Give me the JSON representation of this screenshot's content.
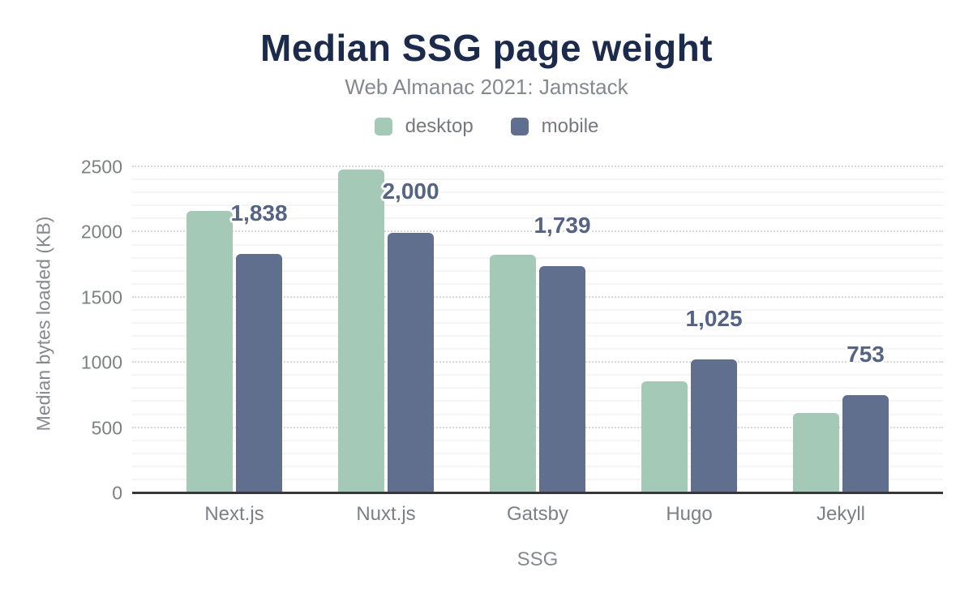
{
  "chart_data": {
    "type": "bar",
    "title": "Median SSG page weight",
    "subtitle": "Web Almanac 2021: Jamstack",
    "xlabel": "SSG",
    "ylabel": "Median bytes loaded (KB)",
    "categories": [
      "Next.js",
      "Nuxt.js",
      "Gatsby",
      "Hugo",
      "Jekyll"
    ],
    "series": [
      {
        "name": "desktop",
        "color": "#a5c9b7",
        "values": [
          2165,
          2485,
          1830,
          858,
          613
        ]
      },
      {
        "name": "mobile",
        "color": "#5f6f8d",
        "values": [
          1838,
          2000,
          1739,
          1025,
          753
        ],
        "labels": [
          "1,838",
          "2,000",
          "1,739",
          "1,025",
          "753"
        ]
      }
    ],
    "ylim": [
      0,
      2600
    ],
    "yticks": [
      0,
      500,
      1000,
      1500,
      2000,
      2500
    ],
    "grid": {
      "minor_step": 100,
      "major_step": 500,
      "max_line": 2500
    },
    "legend_position": "top"
  },
  "colors": {
    "title_text": "#1c2a4b",
    "subtitle_text": "#85898f",
    "desktop_bar": "#a5c9b7",
    "mobile_bar": "#5f6f8d",
    "value_label_text": "#556384",
    "axis_line": "#37373a",
    "tick_text": "#7c8084",
    "minor_gridline": "#f4f4f4",
    "major_gridline": "#d8d8d8"
  }
}
